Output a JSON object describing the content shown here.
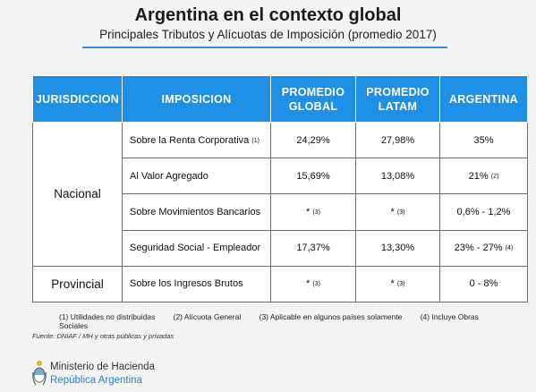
{
  "title": "Argentina en el contexto global",
  "subtitle": "Principales Tributos y Alícuotas de Imposición (promedio 2017)",
  "table": {
    "headers": {
      "jurisdiccion": "JURISDICCION",
      "imposicion": "IMPOSICION",
      "global_l1": "PROMEDIO",
      "global_l2": "GLOBAL",
      "latam_l1": "PROMEDIO",
      "latam_l2": "LATAM",
      "argentina": "ARGENTINA"
    },
    "nacional": {
      "label": "Nacional",
      "rows": [
        {
          "imposicion": "Sobre la Renta Corporativa",
          "imp_note": "(1)",
          "global": "24,29%",
          "global_note": "",
          "latam": "27,98%",
          "latam_note": "",
          "argentina": "35%",
          "arg_note": ""
        },
        {
          "imposicion": "Al Valor Agregado",
          "imp_note": "",
          "global": "15,69%",
          "global_note": "",
          "latam": "13,08%",
          "latam_note": "",
          "argentina": "21%",
          "arg_note": "(2)"
        },
        {
          "imposicion": "Sobre Movimientos Bancarios",
          "imp_note": "",
          "global": "*",
          "global_note": "(3)",
          "latam": "*",
          "latam_note": "(3)",
          "argentina": "0,6% - 1,2%",
          "arg_note": ""
        },
        {
          "imposicion": "Seguridad Social - Empleador",
          "imp_note": "",
          "global": "17,37%",
          "global_note": "",
          "latam": "13,30%",
          "latam_note": "",
          "argentina": "23% - 27%",
          "arg_note": "(4)"
        }
      ]
    },
    "provincial": {
      "label": "Provincial",
      "rows": [
        {
          "imposicion": "Sobre los Ingresos Brutos",
          "imp_note": "",
          "global": "*",
          "global_note": "(3)",
          "latam": "*",
          "latam_note": "(3)",
          "argentina": "0 - 8%",
          "arg_note": ""
        }
      ]
    }
  },
  "footnotes": [
    "(1) Utilidades no distribuidas",
    "(2) Alícuota General",
    "(3) Aplicable en algunos países  solamente",
    "(4) Incluye Obras Sociales"
  ],
  "source": "Fuente: DNIAF / MH y otras públicas y privadas",
  "logo": {
    "ministry": "Ministerio de Hacienda",
    "republic": "República Argentina",
    "icon": "argentina-coat-of-arms-icon"
  }
}
